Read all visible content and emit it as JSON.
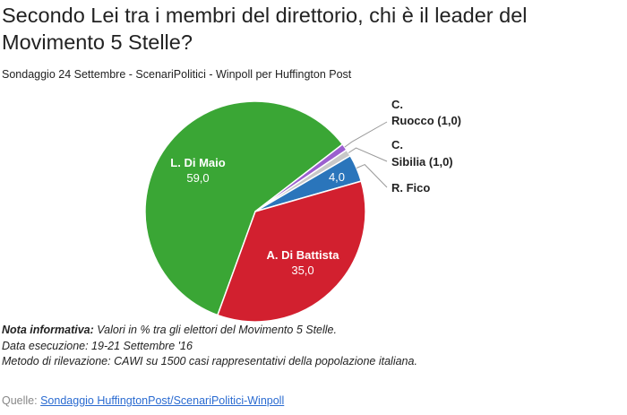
{
  "title": "Secondo Lei tra i membri del direttorio, chi è il leader del Movimento 5 Stelle?",
  "subtitle": "Sondaggio 24 Settembre - ScenariPolitici - Winpoll per Huffington Post",
  "chart_data": {
    "type": "pie",
    "slices": [
      {
        "label": "L. Di Maio",
        "value": 59.0,
        "display": "59,0",
        "color": "#3aa635",
        "label_pos": "inside"
      },
      {
        "label": "C. Ruocco",
        "value": 1.0,
        "display": "(1,0)",
        "color": "#9b5fcf",
        "label_pos": "outside"
      },
      {
        "label": "C. Sibilia",
        "value": 1.0,
        "display": "(1,0)",
        "color": "#c8c8c8",
        "label_pos": "outside"
      },
      {
        "label": "R. Fico",
        "value": 4.0,
        "display": "4,0",
        "color": "#2a75bb",
        "label_pos": "outside"
      },
      {
        "label": "A. Di Battista",
        "value": 35.0,
        "display": "35,0",
        "color": "#d2202f",
        "label_pos": "inside"
      }
    ],
    "outside_labels": {
      "ruocco_line1": "C.",
      "ruocco_line2": "Ruocco (1,0)",
      "sibilia_line1": "C.",
      "sibilia_line2": "Sibilia (1,0)",
      "fico": "R. Fico"
    }
  },
  "notes": {
    "label": "Nota informativa:",
    "line1": " Valori in % tra gli elettori del Movimento 5 Stelle.",
    "line2": "Data esecuzione: 19-21 Settembre '16",
    "line3": "Metodo di rilevazione: CAWI su 1500 casi rappresentativi della popolazione italiana."
  },
  "source": {
    "label": "Quelle:",
    "link": "Sondaggio HuffingtonPost/ScenariPolitici-Winpoll"
  }
}
